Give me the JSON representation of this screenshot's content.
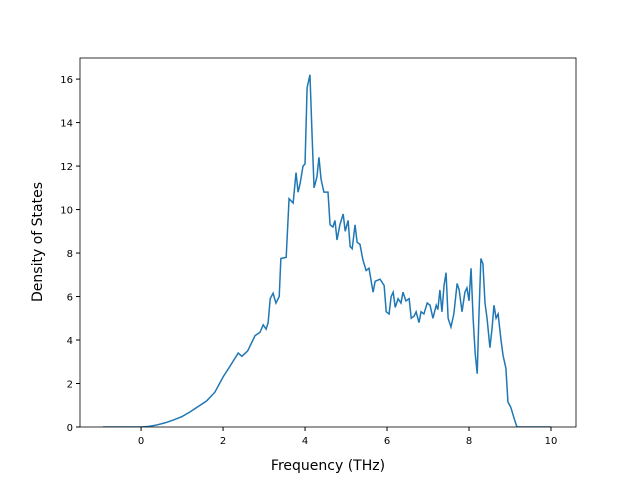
{
  "chart_data": {
    "type": "line",
    "xlabel": "Frequency (THz)",
    "ylabel": "Density of States",
    "color": "#1f77b4",
    "x": [
      -0.93,
      0,
      0.2,
      0.4,
      0.6,
      0.8,
      1.0,
      1.2,
      1.44,
      1.6,
      1.8,
      2.0,
      2.17,
      2.37,
      2.46,
      2.6,
      2.78,
      2.9,
      2.98,
      3.05,
      3.1,
      3.15,
      3.22,
      3.29,
      3.37,
      3.41,
      3.54,
      3.61,
      3.71,
      3.78,
      3.83,
      3.88,
      3.95,
      4.0,
      4.05,
      4.12,
      4.17,
      4.22,
      4.29,
      4.34,
      4.39,
      4.46,
      4.56,
      4.61,
      4.68,
      4.73,
      4.78,
      4.85,
      4.93,
      4.98,
      5.05,
      5.1,
      5.15,
      5.22,
      5.27,
      5.34,
      5.41,
      5.49,
      5.56,
      5.66,
      5.71,
      5.83,
      5.93,
      5.98,
      6.05,
      6.1,
      6.15,
      6.2,
      6.27,
      6.34,
      6.39,
      6.46,
      6.54,
      6.59,
      6.66,
      6.71,
      6.78,
      6.83,
      6.9,
      6.98,
      7.05,
      7.12,
      7.2,
      7.24,
      7.29,
      7.34,
      7.39,
      7.44,
      7.49,
      7.56,
      7.63,
      7.71,
      7.76,
      7.83,
      7.9,
      7.95,
      8.0,
      8.05,
      8.1,
      8.15,
      8.2,
      8.24,
      8.29,
      8.34,
      8.39,
      8.44,
      8.51,
      8.56,
      8.61,
      8.66,
      8.71,
      8.78,
      8.83,
      8.9,
      8.95,
      9.02,
      9.1,
      9.17,
      10.0
    ],
    "values": [
      0,
      0,
      0.03,
      0.1,
      0.2,
      0.33,
      0.48,
      0.7,
      1.0,
      1.2,
      1.6,
      2.3,
      2.8,
      3.4,
      3.25,
      3.5,
      4.2,
      4.35,
      4.7,
      4.5,
      4.8,
      5.9,
      6.15,
      5.7,
      6.0,
      7.75,
      7.8,
      10.5,
      10.3,
      11.7,
      10.8,
      11.2,
      12.0,
      12.1,
      15.6,
      16.2,
      13.5,
      11.0,
      11.5,
      12.4,
      11.4,
      10.8,
      10.8,
      9.3,
      9.2,
      9.5,
      8.6,
      9.3,
      9.8,
      9.0,
      9.5,
      8.3,
      8.2,
      9.3,
      8.5,
      8.4,
      7.7,
      7.2,
      7.3,
      6.2,
      6.7,
      6.8,
      6.5,
      5.3,
      5.2,
      6.0,
      6.2,
      5.5,
      5.9,
      5.7,
      6.2,
      5.8,
      5.9,
      5.0,
      5.1,
      5.3,
      4.8,
      5.3,
      5.2,
      5.7,
      5.6,
      5.0,
      5.6,
      5.4,
      6.3,
      5.3,
      6.5,
      7.1,
      5.0,
      4.6,
      5.2,
      6.6,
      6.3,
      5.3,
      6.2,
      6.4,
      5.8,
      7.3,
      5.0,
      3.4,
      2.45,
      5.0,
      7.75,
      7.5,
      5.7,
      5.0,
      3.65,
      4.5,
      5.6,
      5.0,
      5.2,
      4.0,
      3.3,
      2.7,
      1.15,
      0.9,
      0.4,
      0,
      0
    ],
    "xlim": [
      -1.49,
      10.61
    ],
    "ylim": [
      0,
      16.97
    ],
    "xticks": [
      0,
      2,
      4,
      6,
      8,
      10
    ],
    "yticks": [
      0,
      2,
      4,
      6,
      8,
      10,
      12,
      14,
      16
    ]
  }
}
